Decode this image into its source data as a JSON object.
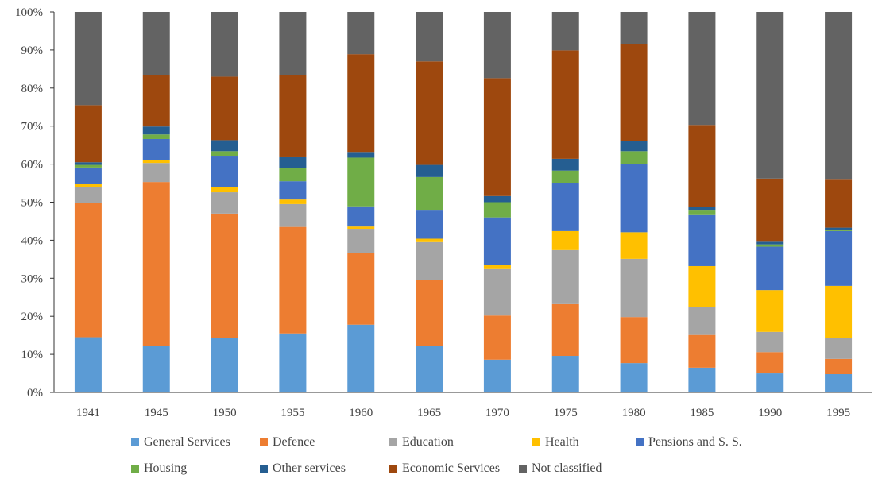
{
  "chart_data": {
    "type": "bar",
    "stacked": true,
    "percent": true,
    "categories": [
      "1941",
      "1945",
      "1950",
      "1955",
      "1960",
      "1965",
      "1970",
      "1975",
      "1980",
      "1985",
      "1990",
      "1995"
    ],
    "ylim": [
      0,
      100
    ],
    "yticks": [
      0,
      10,
      20,
      30,
      40,
      50,
      60,
      70,
      80,
      90,
      100
    ],
    "ytick_labels": [
      "0%",
      "10%",
      "20%",
      "30%",
      "40%",
      "50%",
      "60%",
      "70%",
      "80%",
      "90%",
      "100%"
    ],
    "grid": false,
    "legend_position": "bottom",
    "series": [
      {
        "name": "General Services",
        "color": "#5B9BD5",
        "values": [
          14.5,
          12.3,
          14.3,
          15.5,
          17.8,
          12.3,
          8.6,
          9.6,
          7.7,
          6.5,
          5.0,
          4.8
        ]
      },
      {
        "name": "Defence",
        "color": "#ED7D31",
        "values": [
          35.2,
          43.0,
          32.7,
          28.0,
          18.8,
          17.3,
          11.6,
          13.6,
          12.1,
          8.6,
          5.6,
          4.0
        ]
      },
      {
        "name": "Education",
        "color": "#A5A5A5",
        "values": [
          4.3,
          5.0,
          5.6,
          6.0,
          6.4,
          9.9,
          12.2,
          14.2,
          15.3,
          7.3,
          5.3,
          5.5
        ]
      },
      {
        "name": "Health",
        "color": "#FFC000",
        "values": [
          0.7,
          0.7,
          1.3,
          1.2,
          0.6,
          0.9,
          1.1,
          5.0,
          7.0,
          10.8,
          11.0,
          13.7
        ]
      },
      {
        "name": "Pensions and S. S.",
        "color": "#4472C4",
        "values": [
          4.4,
          5.6,
          8.1,
          4.8,
          5.3,
          7.6,
          12.5,
          12.7,
          18.0,
          13.4,
          11.4,
          14.4
        ]
      },
      {
        "name": "Housing",
        "color": "#70AD47",
        "values": [
          0.7,
          1.2,
          1.4,
          3.4,
          12.8,
          8.6,
          4.0,
          3.2,
          3.3,
          1.4,
          0.6,
          0.4
        ]
      },
      {
        "name": "Other services",
        "color": "#255E91",
        "values": [
          0.7,
          2.1,
          2.9,
          2.9,
          1.5,
          3.2,
          1.6,
          3.1,
          2.6,
          0.8,
          0.7,
          0.5
        ]
      },
      {
        "name": "Economic Services",
        "color": "#9E480E",
        "values": [
          15.0,
          13.5,
          16.7,
          21.7,
          25.7,
          27.2,
          31.0,
          28.5,
          25.5,
          21.5,
          16.6,
          12.8
        ]
      },
      {
        "name": "Not classified",
        "color": "#636363",
        "values": [
          24.5,
          16.6,
          17.0,
          16.5,
          11.1,
          13.0,
          17.4,
          10.1,
          8.5,
          29.7,
          43.8,
          43.9
        ]
      }
    ]
  }
}
